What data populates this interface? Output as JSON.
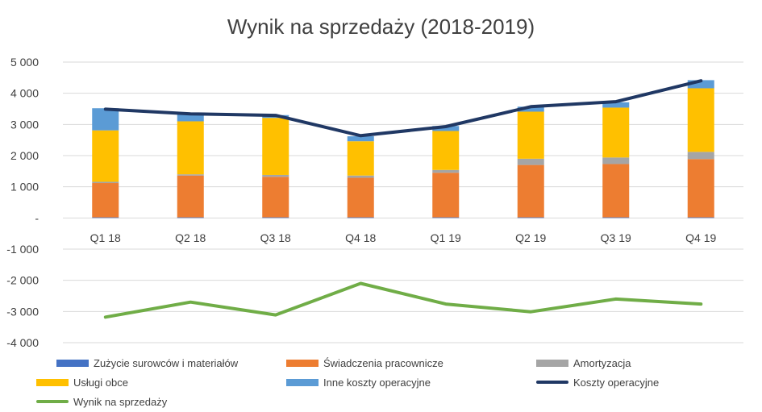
{
  "chart_data": {
    "type": "bar",
    "title": "Wynik na sprzedaży (2018-2019)",
    "categories": [
      "Q1 18",
      "Q2 18",
      "Q3 18",
      "Q4 18",
      "Q1 19",
      "Q2 19",
      "Q3 19",
      "Q4 19"
    ],
    "ylim": [
      -4000,
      5000
    ],
    "yticks": [
      {
        "value": 5000,
        "label": "5 000"
      },
      {
        "value": 4000,
        "label": "4 000"
      },
      {
        "value": 3000,
        "label": "3 000"
      },
      {
        "value": 2000,
        "label": "2 000"
      },
      {
        "value": 1000,
        "label": "1 000"
      },
      {
        "value": 0,
        "label": "-"
      },
      {
        "value": -1000,
        "label": "-1 000"
      },
      {
        "value": -2000,
        "label": "-2 000"
      },
      {
        "value": -3000,
        "label": "-3 000"
      },
      {
        "value": -4000,
        "label": "-4 000"
      }
    ],
    "grid": true,
    "legend_position": "bottom",
    "stacked_series": [
      {
        "name": "Zużycie surowców i materiałów",
        "color": "#4472C4",
        "values": [
          20,
          20,
          20,
          20,
          20,
          20,
          20,
          20
        ]
      },
      {
        "name": "Świadczenia pracownicze",
        "color": "#ED7D31",
        "values": [
          1100,
          1340,
          1300,
          1270,
          1430,
          1680,
          1710,
          1870
        ]
      },
      {
        "name": "Amortyzacja",
        "color": "#A5A5A5",
        "values": [
          40,
          40,
          60,
          70,
          90,
          200,
          210,
          230
        ]
      },
      {
        "name": "Usługi obce",
        "color": "#FFC000",
        "values": [
          1650,
          1700,
          1830,
          1100,
          1250,
          1510,
          1600,
          2040
        ]
      },
      {
        "name": "Inne koszty operacyjne",
        "color": "#5B9BD5",
        "values": [
          710,
          260,
          90,
          160,
          160,
          160,
          170,
          260
        ]
      }
    ],
    "line_series": [
      {
        "name": "Koszty operacyjne",
        "color": "#203864",
        "values": [
          3490,
          3340,
          3290,
          2640,
          2930,
          3570,
          3730,
          4400
        ]
      },
      {
        "name": "Wynik na sprzedaży",
        "color": "#70AD47",
        "values": [
          -3180,
          -2700,
          -3110,
          -2100,
          -2760,
          -3010,
          -2600,
          -2760
        ]
      }
    ]
  }
}
